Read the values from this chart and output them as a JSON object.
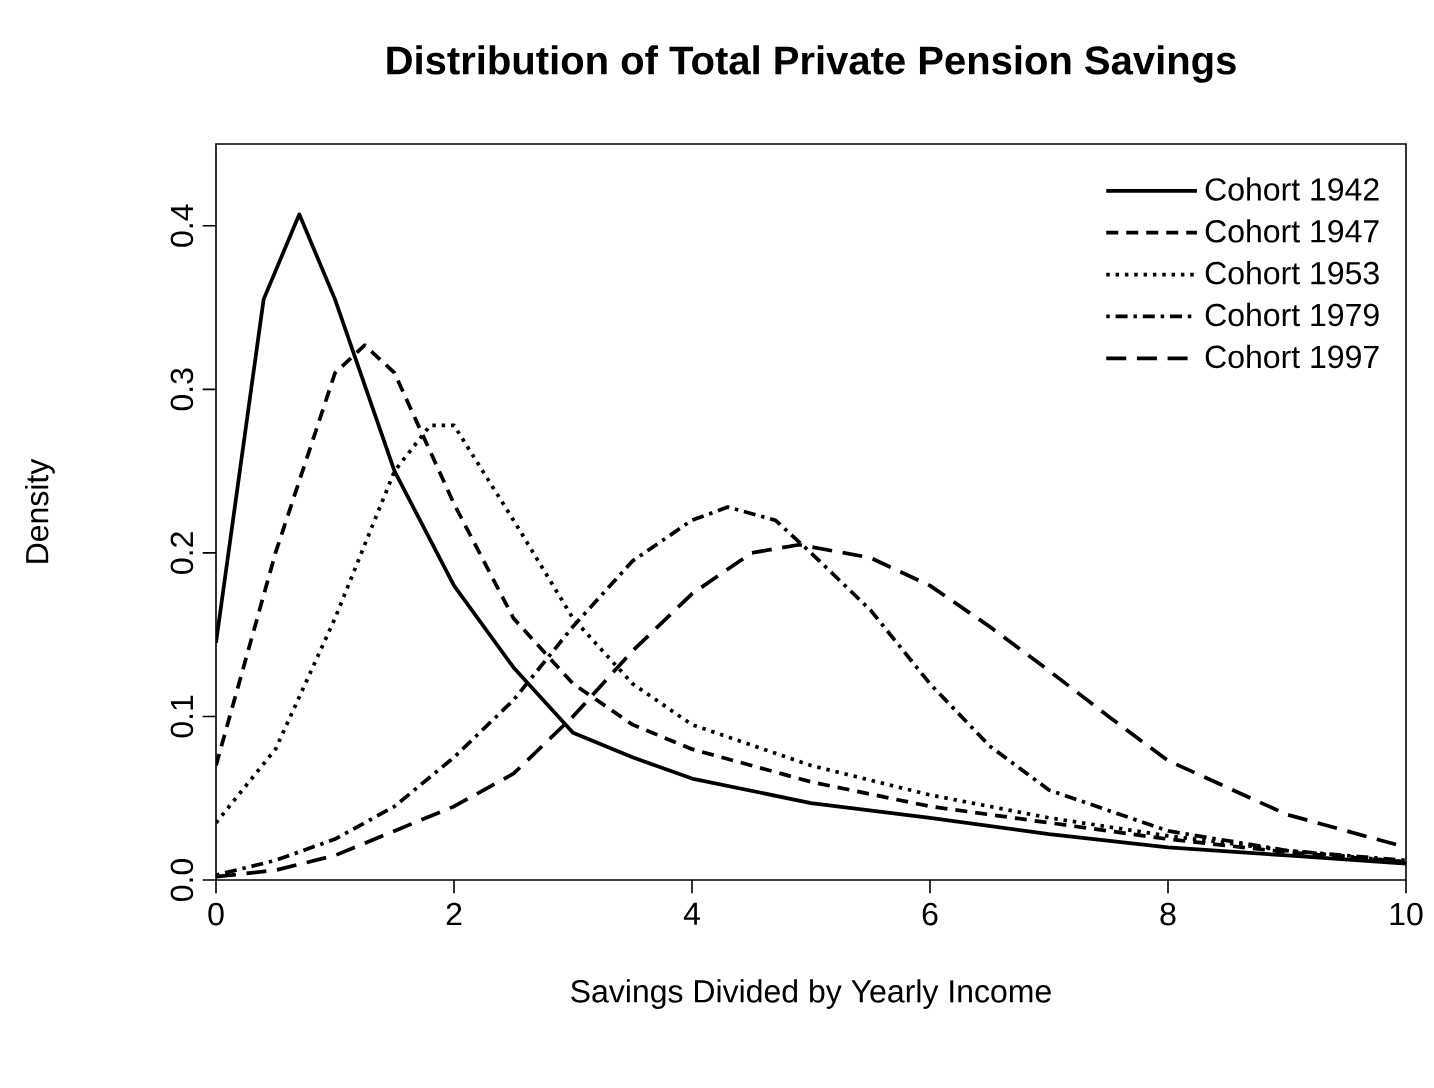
{
  "chart_data": {
    "type": "line",
    "title": "Distribution of Total Private Pension Savings",
    "xlabel": "Savings Divided by Yearly Income",
    "ylabel": "Density",
    "xlim": [
      0,
      10
    ],
    "ylim": [
      0,
      0.45
    ],
    "xticks": [
      0,
      2,
      4,
      6,
      8,
      10
    ],
    "yticks": [
      {
        "value": 0,
        "label": "0.0"
      },
      0.1,
      0.2,
      0.3,
      0.4
    ],
    "grid": false,
    "legend": "top right",
    "series": [
      {
        "name": "Cohort 1942",
        "color": "#000000",
        "line_style": "solid",
        "x": [
          0,
          0.4,
          0.7,
          1.0,
          1.5,
          2.0,
          2.5,
          3.0,
          3.5,
          4,
          5,
          6,
          7,
          8,
          9,
          10
        ],
        "values": [
          0.145,
          0.355,
          0.407,
          0.355,
          0.25,
          0.18,
          0.13,
          0.09,
          0.075,
          0.062,
          0.047,
          0.038,
          0.028,
          0.02,
          0.015,
          0.01
        ]
      },
      {
        "name": "Cohort 1947",
        "color": "#000000",
        "line_style": "dashed",
        "x": [
          0,
          0.5,
          1.0,
          1.25,
          1.5,
          2,
          2.5,
          3,
          3.5,
          4,
          5,
          6,
          7,
          8,
          9,
          10
        ],
        "values": [
          0.07,
          0.2,
          0.31,
          0.327,
          0.31,
          0.23,
          0.16,
          0.12,
          0.095,
          0.08,
          0.06,
          0.045,
          0.035,
          0.025,
          0.017,
          0.011
        ]
      },
      {
        "name": "Cohort 1953",
        "color": "#000000",
        "line_style": "dotted",
        "x": [
          0,
          0.5,
          1,
          1.5,
          1.8,
          2,
          2.5,
          3,
          3.5,
          4,
          5,
          6,
          7,
          8,
          9,
          10
        ],
        "values": [
          0.035,
          0.08,
          0.16,
          0.25,
          0.278,
          0.278,
          0.22,
          0.16,
          0.12,
          0.095,
          0.07,
          0.052,
          0.038,
          0.027,
          0.018,
          0.011
        ]
      },
      {
        "name": "Cohort 1979",
        "color": "#000000",
        "line_style": "dashdot",
        "x": [
          0,
          0.5,
          1,
          1.5,
          2,
          2.5,
          3,
          3.5,
          4,
          4.3,
          4.7,
          5,
          5.5,
          6,
          6.5,
          7,
          8,
          9,
          10
        ],
        "values": [
          0.003,
          0.012,
          0.025,
          0.045,
          0.075,
          0.11,
          0.155,
          0.195,
          0.22,
          0.228,
          0.22,
          0.2,
          0.165,
          0.12,
          0.082,
          0.055,
          0.03,
          0.018,
          0.012
        ]
      },
      {
        "name": "Cohort 1997",
        "color": "#000000",
        "line_style": "longdash",
        "x": [
          0,
          0.5,
          1,
          1.5,
          2,
          2.5,
          3,
          3.5,
          4,
          4.5,
          4.9,
          5.5,
          6,
          6.5,
          7,
          7.5,
          8,
          9,
          10
        ],
        "values": [
          0.002,
          0.006,
          0.015,
          0.03,
          0.045,
          0.065,
          0.1,
          0.14,
          0.175,
          0.2,
          0.205,
          0.197,
          0.18,
          0.155,
          0.128,
          0.1,
          0.073,
          0.04,
          0.02
        ]
      }
    ]
  }
}
